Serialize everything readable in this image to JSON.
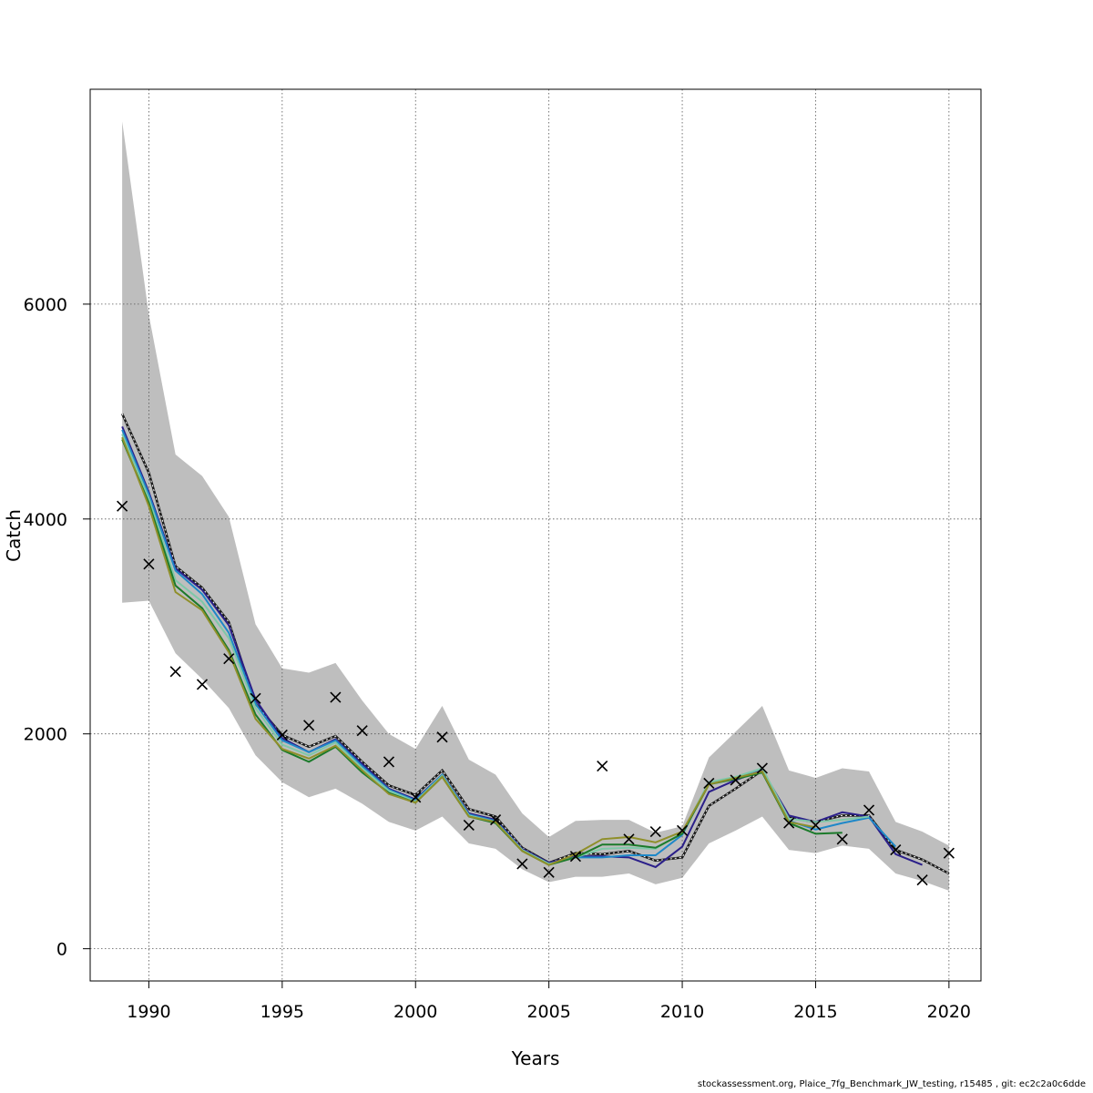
{
  "chart_data": {
    "type": "line",
    "xlabel": "Years",
    "ylabel": "Catch",
    "xlim": [
      1987.8,
      2021.2
    ],
    "ylim": [
      -300,
      8000
    ],
    "xticks": [
      1990,
      1995,
      2000,
      2005,
      2010,
      2015,
      2020
    ],
    "yticks": [
      0,
      2000,
      4000,
      6000
    ],
    "grid": true,
    "band": {
      "color": "#bebebe",
      "x": [
        1989,
        1990,
        1991,
        1992,
        1993,
        1994,
        1995,
        1996,
        1997,
        1998,
        1999,
        2000,
        2001,
        2002,
        2003,
        2004,
        2005,
        2006,
        2007,
        2008,
        2009,
        2010,
        2011,
        2012,
        2013,
        2014,
        2015,
        2016,
        2017,
        2018,
        2019,
        2020
      ],
      "upper": [
        7700,
        5900,
        4600,
        4400,
        4020,
        3020,
        2610,
        2570,
        2660,
        2310,
        2000,
        1860,
        2260,
        1760,
        1620,
        1260,
        1040,
        1190,
        1200,
        1200,
        1080,
        1140,
        1780,
        2020,
        2260,
        1660,
        1590,
        1680,
        1650,
        1180,
        1090,
        960
      ],
      "lower": [
        3220,
        3240,
        2750,
        2510,
        2240,
        1800,
        1550,
        1410,
        1490,
        1350,
        1180,
        1100,
        1230,
        980,
        930,
        740,
        620,
        670,
        670,
        700,
        600,
        660,
        980,
        1100,
        1230,
        920,
        890,
        960,
        930,
        700,
        630,
        540
      ]
    },
    "series": [
      {
        "color": "#1a1a1a",
        "dashed": true,
        "x": [
          1989,
          1990,
          1991,
          1992,
          1993,
          1994,
          1995,
          1996,
          1997,
          1998,
          1999,
          2000,
          2001,
          2002,
          2003,
          2004,
          2005,
          2006,
          2007,
          2008,
          2009,
          2010,
          2011,
          2012,
          2013,
          2014,
          2015,
          2016,
          2017,
          2018,
          2019,
          2020
        ],
        "values": [
          4980,
          4430,
          3560,
          3360,
          3040,
          2280,
          1990,
          1880,
          1980,
          1740,
          1520,
          1430,
          1660,
          1300,
          1230,
          940,
          800,
          890,
          880,
          910,
          820,
          850,
          1330,
          1490,
          1660,
          1220,
          1180,
          1240,
          1240,
          920,
          830,
          700
        ]
      },
      {
        "color": "#2b1f8a",
        "x": [
          1989,
          1990,
          1991,
          1992,
          1993,
          1994,
          1995,
          1996,
          1997,
          1998,
          1999,
          2000,
          2001,
          2002,
          2003,
          2004,
          2005,
          2006,
          2007,
          2008,
          2009,
          2010,
          2011,
          2012,
          2013,
          2014,
          2015,
          2016,
          2017,
          2018,
          2019
        ],
        "values": [
          4860,
          4250,
          3540,
          3340,
          3010,
          2320,
          1960,
          1830,
          1950,
          1720,
          1490,
          1390,
          1620,
          1260,
          1200,
          930,
          800,
          860,
          860,
          850,
          760,
          950,
          1460,
          1570,
          1660,
          1240,
          1180,
          1270,
          1230,
          880,
          780
        ]
      },
      {
        "color": "#1e88c8",
        "x": [
          1989,
          1990,
          1991,
          1992,
          1993,
          1994,
          1995,
          1996,
          1997,
          1998,
          1999,
          2000,
          2001,
          2002,
          2003,
          2004,
          2005,
          2006,
          2007,
          2008,
          2009,
          2010,
          2011,
          2012,
          2013,
          2014,
          2015,
          2016,
          2017,
          2018
        ],
        "values": [
          4830,
          4230,
          3520,
          3300,
          2940,
          2280,
          1940,
          1830,
          1940,
          1700,
          1480,
          1380,
          1620,
          1250,
          1190,
          920,
          790,
          850,
          850,
          870,
          870,
          1060,
          1550,
          1590,
          1680,
          1190,
          1110,
          1170,
          1220,
          950
        ]
      },
      {
        "color": "#7ec8a8",
        "x": [
          1989,
          1990,
          1991,
          1992,
          1993,
          1994,
          1995,
          1996,
          1997,
          1998,
          1999,
          2000,
          2001,
          2002,
          2003,
          2004,
          2005,
          2006,
          2007,
          2008,
          2009,
          2010,
          2011,
          2012,
          2013,
          2014,
          2015,
          2016,
          2017
        ],
        "values": [
          4790,
          4190,
          3430,
          3230,
          2890,
          2240,
          1900,
          1800,
          1920,
          1680,
          1470,
          1370,
          1610,
          1240,
          1180,
          920,
          790,
          850,
          930,
          940,
          930,
          1080,
          1550,
          1600,
          1680,
          1210,
          1180,
          1200,
          1230
        ]
      },
      {
        "color": "#1b7a2a",
        "x": [
          1989,
          1990,
          1991,
          1992,
          1993,
          1994,
          1995,
          1996,
          1997,
          1998,
          1999,
          2000,
          2001,
          2002,
          2003,
          2004,
          2005,
          2006,
          2007,
          2008,
          2009,
          2010,
          2011,
          2012,
          2013,
          2014,
          2015,
          2016
        ],
        "values": [
          4740,
          4150,
          3380,
          3170,
          2780,
          2180,
          1850,
          1740,
          1880,
          1640,
          1450,
          1360,
          1600,
          1230,
          1170,
          910,
          780,
          850,
          970,
          970,
          940,
          1070,
          1530,
          1580,
          1640,
          1170,
          1070,
          1080
        ]
      },
      {
        "color": "#8f8f2a",
        "x": [
          1989,
          1990,
          1991,
          1992,
          1993,
          1994,
          1995,
          1996,
          1997,
          1998,
          1999,
          2000,
          2001,
          2002,
          2003,
          2004,
          2005,
          2006,
          2007,
          2008,
          2009,
          2010,
          2011,
          2012,
          2013,
          2014,
          2015
        ],
        "values": [
          4760,
          4120,
          3320,
          3150,
          2760,
          2140,
          1860,
          1770,
          1890,
          1660,
          1440,
          1360,
          1600,
          1230,
          1180,
          910,
          780,
          880,
          1020,
          1040,
          990,
          1090,
          1530,
          1590,
          1650,
          1180,
          1130
        ]
      }
    ],
    "observed": {
      "marker": "x",
      "x": [
        1989,
        1990,
        1991,
        1992,
        1993,
        1994,
        1995,
        1996,
        1997,
        1998,
        1999,
        2000,
        2001,
        2002,
        2003,
        2004,
        2005,
        2006,
        2007,
        2008,
        2009,
        2010,
        2011,
        2012,
        2013,
        2014,
        2015,
        2016,
        2017,
        2018,
        2019,
        2020
      ],
      "values": [
        4120,
        3580,
        2580,
        2460,
        2700,
        2330,
        1990,
        2080,
        2340,
        2030,
        1740,
        1410,
        1970,
        1150,
        1200,
        790,
        710,
        860,
        1700,
        1020,
        1090,
        1100,
        1540,
        1570,
        1680,
        1170,
        1150,
        1020,
        1290,
        920,
        640,
        890
      ]
    }
  },
  "footer": "stockassessment.org, Plaice_7fg_Benchmark_JW_testing, r15485 , git: ec2c2a0c6dde"
}
